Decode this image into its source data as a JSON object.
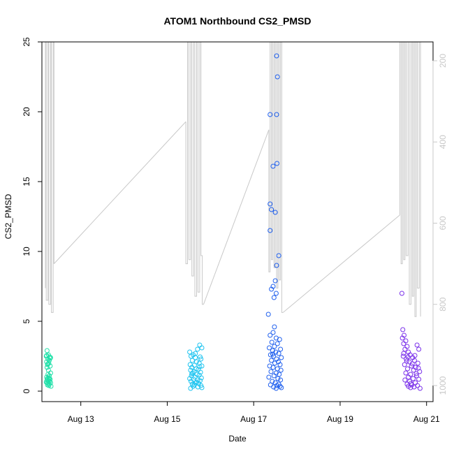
{
  "chart_data": {
    "type": "scatter",
    "title": "ATOM1 Northbound CS2_PMSD",
    "xlabel": "Date",
    "ylabel": "CS2_PMSD",
    "x_ticks": [
      "Aug 13",
      "Aug 15",
      "Aug 17",
      "Aug 19",
      "Aug 21"
    ],
    "x_tick_days": [
      13,
      15,
      17,
      19,
      21
    ],
    "xlim_days": [
      12.1,
      21.15
    ],
    "ylim": [
      0,
      25
    ],
    "y_ticks": [
      0,
      5,
      10,
      15,
      20,
      25
    ],
    "y2_ticks": [
      200,
      400,
      600,
      800,
      1000
    ],
    "y2lim": [
      1000,
      130
    ],
    "grid": false,
    "legend": "none",
    "colors": {
      "line": "#c8c8c8",
      "cluster_aug12": "#1fe0a8",
      "cluster_aug15": "#1ec4f0",
      "cluster_aug17": "#2060ee",
      "cluster_aug20": "#7a30ea"
    },
    "series": [
      {
        "color_key": "cluster_aug12",
        "points": [
          [
            12.22,
            2.9
          ],
          [
            12.25,
            2.6
          ],
          [
            12.2,
            2.5
          ],
          [
            12.28,
            2.45
          ],
          [
            12.3,
            2.4
          ],
          [
            12.24,
            2.3
          ],
          [
            12.27,
            2.2
          ],
          [
            12.21,
            2.1
          ],
          [
            12.26,
            2.0
          ],
          [
            12.23,
            1.9
          ],
          [
            12.29,
            1.8
          ],
          [
            12.22,
            1.7
          ],
          [
            12.25,
            1.5
          ],
          [
            12.3,
            1.3
          ],
          [
            12.24,
            1.2
          ],
          [
            12.27,
            1.1
          ],
          [
            12.21,
            1.0
          ],
          [
            12.26,
            0.95
          ],
          [
            12.23,
            0.9
          ],
          [
            12.29,
            0.85
          ],
          [
            12.22,
            0.8
          ],
          [
            12.25,
            0.75
          ],
          [
            12.28,
            0.7
          ],
          [
            12.2,
            0.65
          ],
          [
            12.3,
            0.6
          ],
          [
            12.24,
            0.55
          ],
          [
            12.27,
            0.5
          ],
          [
            12.23,
            0.45
          ],
          [
            12.26,
            0.4
          ],
          [
            12.31,
            0.35
          ],
          [
            12.21,
            2.55
          ],
          [
            12.29,
            2.35
          ],
          [
            12.24,
            1.95
          ],
          [
            12.27,
            0.9
          ],
          [
            12.22,
            0.6
          ]
        ]
      },
      {
        "color_key": "cluster_aug15",
        "points": [
          [
            15.52,
            2.8
          ],
          [
            15.6,
            2.6
          ],
          [
            15.75,
            3.3
          ],
          [
            15.8,
            3.1
          ],
          [
            15.7,
            3.0
          ],
          [
            15.55,
            2.5
          ],
          [
            15.65,
            2.4
          ],
          [
            15.78,
            2.3
          ],
          [
            15.58,
            2.2
          ],
          [
            15.68,
            2.1
          ],
          [
            15.74,
            2.0
          ],
          [
            15.53,
            1.9
          ],
          [
            15.63,
            1.85
          ],
          [
            15.8,
            1.8
          ],
          [
            15.57,
            1.7
          ],
          [
            15.67,
            1.6
          ],
          [
            15.72,
            1.55
          ],
          [
            15.54,
            1.5
          ],
          [
            15.62,
            1.4
          ],
          [
            15.77,
            1.35
          ],
          [
            15.59,
            1.3
          ],
          [
            15.69,
            1.2
          ],
          [
            15.74,
            1.15
          ],
          [
            15.56,
            1.1
          ],
          [
            15.64,
            1.0
          ],
          [
            15.79,
            0.95
          ],
          [
            15.52,
            0.9
          ],
          [
            15.61,
            0.85
          ],
          [
            15.7,
            0.8
          ],
          [
            15.76,
            0.75
          ],
          [
            15.55,
            0.7
          ],
          [
            15.66,
            0.6
          ],
          [
            15.73,
            0.55
          ],
          [
            15.58,
            0.5
          ],
          [
            15.63,
            0.45
          ],
          [
            15.78,
            0.4
          ],
          [
            15.6,
            0.35
          ],
          [
            15.71,
            0.3
          ],
          [
            15.8,
            0.25
          ],
          [
            15.54,
            0.2
          ],
          [
            15.65,
            2.7
          ],
          [
            15.76,
            2.45
          ],
          [
            15.57,
            1.25
          ],
          [
            15.68,
            0.65
          ],
          [
            15.75,
            1.75
          ]
        ]
      },
      {
        "color_key": "cluster_aug17",
        "points": [
          [
            17.53,
            24.0
          ],
          [
            17.55,
            22.5
          ],
          [
            17.38,
            19.8
          ],
          [
            17.53,
            19.8
          ],
          [
            17.54,
            16.3
          ],
          [
            17.45,
            16.1
          ],
          [
            17.38,
            13.4
          ],
          [
            17.41,
            13.0
          ],
          [
            17.5,
            12.8
          ],
          [
            17.38,
            11.5
          ],
          [
            17.58,
            9.7
          ],
          [
            17.53,
            9.0
          ],
          [
            17.5,
            7.9
          ],
          [
            17.45,
            7.5
          ],
          [
            17.41,
            7.3
          ],
          [
            17.52,
            7.0
          ],
          [
            17.47,
            6.7
          ],
          [
            17.34,
            5.5
          ],
          [
            17.48,
            4.6
          ],
          [
            17.45,
            4.2
          ],
          [
            17.38,
            4.0
          ],
          [
            17.52,
            3.8
          ],
          [
            17.6,
            3.7
          ],
          [
            17.42,
            3.5
          ],
          [
            17.55,
            3.4
          ],
          [
            17.48,
            3.2
          ],
          [
            17.36,
            3.1
          ],
          [
            17.62,
            3.0
          ],
          [
            17.44,
            2.9
          ],
          [
            17.51,
            2.8
          ],
          [
            17.58,
            2.7
          ],
          [
            17.39,
            2.6
          ],
          [
            17.46,
            2.5
          ],
          [
            17.64,
            2.4
          ],
          [
            17.53,
            2.3
          ],
          [
            17.41,
            2.2
          ],
          [
            17.57,
            2.1
          ],
          [
            17.49,
            2.0
          ],
          [
            17.61,
            1.9
          ],
          [
            17.37,
            1.8
          ],
          [
            17.45,
            1.7
          ],
          [
            17.55,
            1.6
          ],
          [
            17.63,
            1.5
          ],
          [
            17.4,
            1.4
          ],
          [
            17.52,
            1.3
          ],
          [
            17.59,
            1.2
          ],
          [
            17.47,
            1.1
          ],
          [
            17.35,
            1.0
          ],
          [
            17.56,
            0.9
          ],
          [
            17.62,
            0.8
          ],
          [
            17.43,
            0.7
          ],
          [
            17.5,
            0.6
          ],
          [
            17.58,
            0.5
          ],
          [
            17.39,
            0.45
          ],
          [
            17.54,
            0.4
          ],
          [
            17.61,
            0.35
          ],
          [
            17.46,
            0.3
          ],
          [
            17.64,
            0.25
          ],
          [
            17.52,
            0.2
          ],
          [
            17.44,
            2.65
          ]
        ]
      },
      {
        "color_key": "cluster_aug20",
        "points": [
          [
            20.43,
            7.0
          ],
          [
            20.45,
            4.4
          ],
          [
            20.48,
            4.0
          ],
          [
            20.44,
            3.8
          ],
          [
            20.52,
            3.6
          ],
          [
            20.47,
            3.4
          ],
          [
            20.55,
            3.2
          ],
          [
            20.78,
            3.3
          ],
          [
            20.82,
            3.0
          ],
          [
            20.5,
            3.0
          ],
          [
            20.58,
            2.8
          ],
          [
            20.62,
            2.6
          ],
          [
            20.46,
            2.5
          ],
          [
            20.68,
            2.4
          ],
          [
            20.53,
            2.3
          ],
          [
            20.72,
            2.2
          ],
          [
            20.6,
            2.1
          ],
          [
            20.8,
            2.0
          ],
          [
            20.49,
            1.9
          ],
          [
            20.65,
            1.8
          ],
          [
            20.75,
            1.7
          ],
          [
            20.56,
            1.6
          ],
          [
            20.7,
            1.5
          ],
          [
            20.84,
            1.4
          ],
          [
            20.52,
            1.3
          ],
          [
            20.63,
            1.2
          ],
          [
            20.77,
            1.1
          ],
          [
            20.58,
            1.0
          ],
          [
            20.69,
            0.9
          ],
          [
            20.82,
            0.85
          ],
          [
            20.5,
            0.8
          ],
          [
            20.61,
            0.7
          ],
          [
            20.74,
            0.6
          ],
          [
            20.55,
            0.5
          ],
          [
            20.66,
            0.45
          ],
          [
            20.79,
            0.4
          ],
          [
            20.58,
            0.35
          ],
          [
            20.71,
            0.3
          ],
          [
            20.63,
            0.25
          ],
          [
            20.85,
            0.2
          ],
          [
            20.47,
            2.7
          ],
          [
            20.57,
            2.45
          ],
          [
            20.67,
            1.95
          ],
          [
            20.76,
            1.25
          ],
          [
            20.64,
            0.55
          ],
          [
            20.81,
            1.65
          ],
          [
            20.54,
            2.15
          ],
          [
            20.73,
            2.55
          ]
        ]
      }
    ],
    "y2_series": {
      "color_key": "line",
      "segments": [
        [
          [
            12.18,
            760
          ],
          [
            12.18,
            50
          ],
          [
            12.2,
            50
          ],
          [
            12.2,
            790
          ],
          [
            12.24,
            790
          ],
          [
            12.24,
            50
          ],
          [
            12.26,
            50
          ],
          [
            12.26,
            800
          ],
          [
            12.3,
            800
          ],
          [
            12.3,
            50
          ],
          [
            12.32,
            50
          ],
          [
            12.32,
            820
          ],
          [
            12.36,
            820
          ],
          [
            12.36,
            50
          ],
          [
            12.38,
            50
          ],
          [
            12.38,
            700
          ]
        ],
        [
          [
            12.38,
            700
          ],
          [
            15.43,
            350
          ]
        ],
        [
          [
            15.43,
            350
          ],
          [
            15.43,
            700
          ],
          [
            15.47,
            700
          ],
          [
            15.47,
            50
          ],
          [
            15.5,
            50
          ],
          [
            15.5,
            690
          ],
          [
            15.54,
            690
          ],
          [
            15.54,
            50
          ],
          [
            15.57,
            50
          ],
          [
            15.57,
            730
          ],
          [
            15.61,
            730
          ],
          [
            15.61,
            50
          ],
          [
            15.64,
            50
          ],
          [
            15.64,
            780
          ],
          [
            15.68,
            780
          ],
          [
            15.68,
            50
          ],
          [
            15.71,
            50
          ],
          [
            15.71,
            770
          ],
          [
            15.75,
            770
          ],
          [
            15.75,
            50
          ],
          [
            15.78,
            50
          ],
          [
            15.78,
            680
          ],
          [
            15.81,
            680
          ],
          [
            15.81,
            800
          ],
          [
            15.84,
            800
          ]
        ],
        [
          [
            15.84,
            800
          ],
          [
            17.35,
            370
          ]
        ],
        [
          [
            17.35,
            370
          ],
          [
            17.35,
            720
          ],
          [
            17.38,
            720
          ],
          [
            17.38,
            50
          ],
          [
            17.41,
            50
          ],
          [
            17.41,
            690
          ],
          [
            17.44,
            690
          ],
          [
            17.44,
            50
          ],
          [
            17.47,
            50
          ],
          [
            17.47,
            710
          ],
          [
            17.5,
            710
          ],
          [
            17.5,
            50
          ],
          [
            17.53,
            50
          ],
          [
            17.53,
            760
          ],
          [
            17.56,
            760
          ],
          [
            17.56,
            50
          ],
          [
            17.59,
            50
          ],
          [
            17.59,
            740
          ],
          [
            17.62,
            740
          ],
          [
            17.62,
            50
          ],
          [
            17.65,
            50
          ],
          [
            17.65,
            820
          ],
          [
            17.68,
            820
          ]
        ],
        [
          [
            17.68,
            820
          ],
          [
            20.38,
            580
          ]
        ],
        [
          [
            20.38,
            580
          ],
          [
            20.38,
            50
          ],
          [
            20.41,
            50
          ],
          [
            20.41,
            700
          ],
          [
            20.44,
            700
          ],
          [
            20.44,
            50
          ],
          [
            20.47,
            50
          ],
          [
            20.47,
            690
          ],
          [
            20.5,
            690
          ],
          [
            20.5,
            50
          ],
          [
            20.53,
            50
          ],
          [
            20.53,
            680
          ],
          [
            20.57,
            680
          ],
          [
            20.57,
            50
          ],
          [
            20.6,
            50
          ],
          [
            20.6,
            800
          ],
          [
            20.64,
            800
          ],
          [
            20.64,
            50
          ],
          [
            20.67,
            50
          ],
          [
            20.67,
            780
          ],
          [
            20.7,
            780
          ],
          [
            20.7,
            50
          ],
          [
            20.73,
            50
          ],
          [
            20.73,
            830
          ],
          [
            20.76,
            830
          ],
          [
            20.76,
            50
          ],
          [
            20.79,
            50
          ],
          [
            20.79,
            760
          ],
          [
            20.83,
            760
          ],
          [
            20.83,
            50
          ],
          [
            20.86,
            50
          ],
          [
            20.86,
            830
          ]
        ]
      ]
    }
  }
}
